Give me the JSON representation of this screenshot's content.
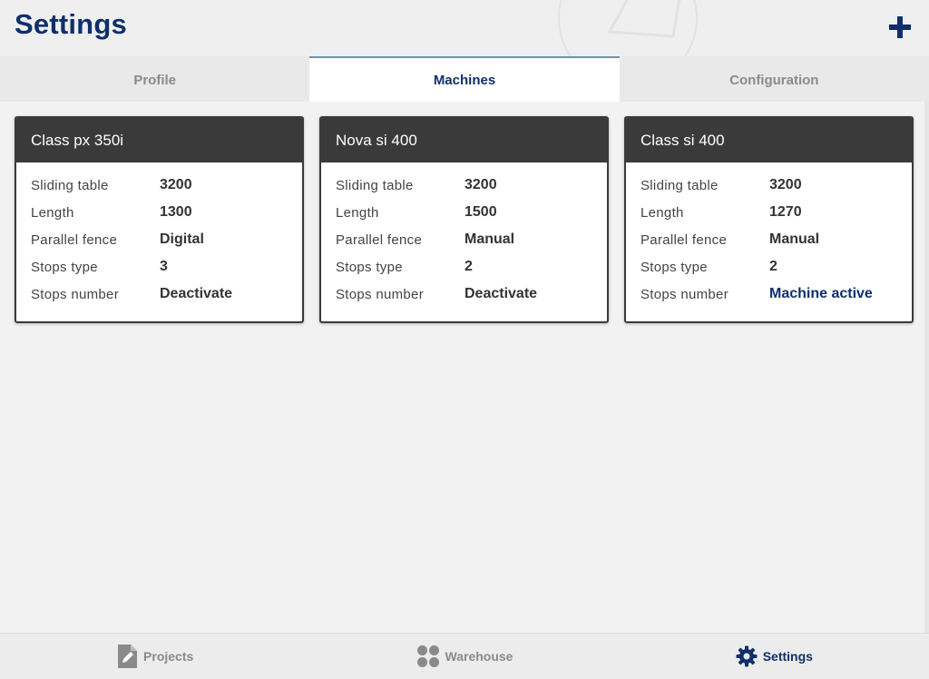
{
  "header": {
    "title": "Settings",
    "add_icon": "plus-icon"
  },
  "tabs": [
    {
      "label": "Profile",
      "active": false
    },
    {
      "label": "Machines",
      "active": true
    },
    {
      "label": "Configuration",
      "active": false
    }
  ],
  "machines": [
    {
      "name": "Class px 350i",
      "rows": [
        {
          "label": "Sliding table",
          "value": "3200"
        },
        {
          "label": "Length",
          "value": "1300"
        },
        {
          "label": "Parallel fence",
          "value": "Digital"
        },
        {
          "label": "Stops type",
          "value": "3"
        },
        {
          "label": "Stops number",
          "value": "Deactivate"
        }
      ]
    },
    {
      "name": "Nova si 400",
      "rows": [
        {
          "label": "Sliding table",
          "value": "3200"
        },
        {
          "label": "Length",
          "value": "1500"
        },
        {
          "label": "Parallel fence",
          "value": "Manual"
        },
        {
          "label": "Stops type",
          "value": "2"
        },
        {
          "label": "Stops number",
          "value": "Deactivate"
        }
      ]
    },
    {
      "name": "Class si 400",
      "rows": [
        {
          "label": "Sliding table",
          "value": "3200"
        },
        {
          "label": "Length",
          "value": "1270"
        },
        {
          "label": "Parallel fence",
          "value": "Manual"
        },
        {
          "label": "Stops type",
          "value": "2"
        },
        {
          "label": "Stops number",
          "value": "Machine active"
        }
      ]
    }
  ],
  "bottom_nav": [
    {
      "label": "Projects",
      "icon": "document-edit-icon",
      "active": false
    },
    {
      "label": "Warehouse",
      "icon": "four-dots-icon",
      "active": false
    },
    {
      "label": "Settings",
      "icon": "gear-icon",
      "active": true
    }
  ],
  "colors": {
    "brand": "#0f2f6b",
    "card_header": "#3a3a3a",
    "muted": "#8a8a8a",
    "background": "#f2f2f2"
  }
}
